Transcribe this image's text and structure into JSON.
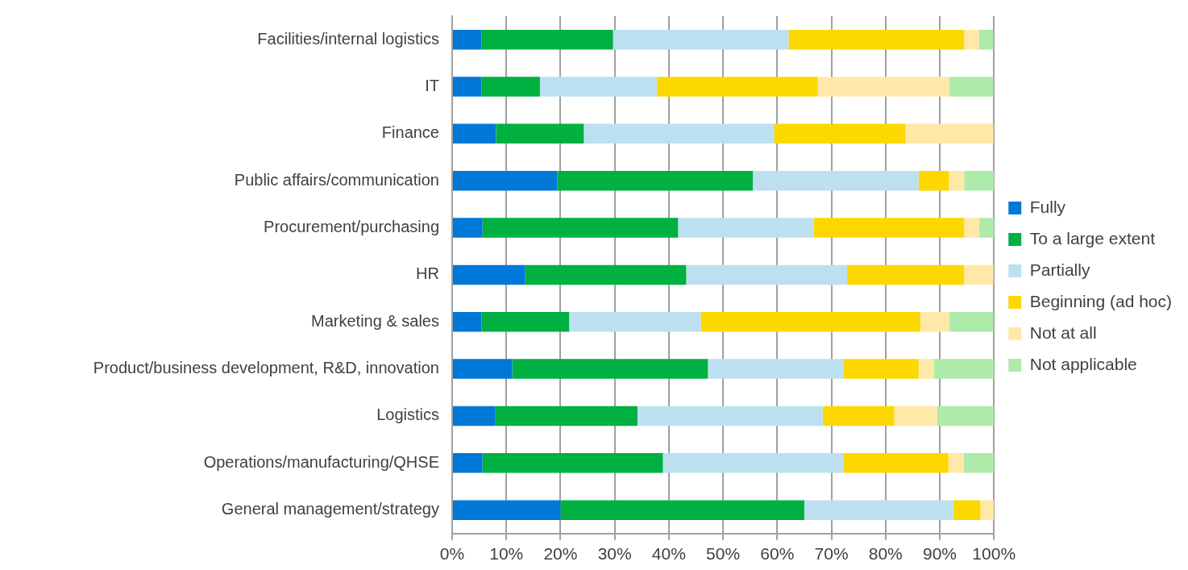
{
  "chart_data": {
    "type": "bar",
    "orientation": "horizontal",
    "stacked": true,
    "categories": [
      "Facilities/internal logistics",
      "IT",
      "Finance",
      "Public affairs/communication",
      "Procurement/purchasing",
      "HR",
      "Marketing & sales",
      "Product/business development, R&D, innovation",
      "Logistics",
      "Operations/manufacturing/QHSE",
      "General management/strategy"
    ],
    "series": [
      {
        "name": "Fully",
        "color": "#0078d7",
        "values": [
          5.4,
          5.4,
          8.1,
          19.4,
          5.6,
          13.5,
          5.4,
          11.1,
          7.9,
          5.6,
          20
        ]
      },
      {
        "name": "To a large extent",
        "color": "#00b040",
        "values": [
          24.3,
          10.8,
          16.2,
          36.1,
          36.1,
          29.7,
          16.2,
          36.1,
          26.3,
          33.3,
          45
        ]
      },
      {
        "name": "Partially",
        "color": "#bde0f0",
        "values": [
          32.4,
          21.6,
          35.1,
          30.6,
          25,
          29.7,
          24.3,
          25,
          34.2,
          33.3,
          27.5
        ]
      },
      {
        "name": "Beginning (ad hoc)",
        "color": "#fcd800",
        "values": [
          32.4,
          29.7,
          24.3,
          5.6,
          27.8,
          21.6,
          40.5,
          13.9,
          13.2,
          19.4,
          5
        ]
      },
      {
        "name": "Not at all",
        "color": "#ffe8a8",
        "values": [
          2.7,
          24.3,
          16.2,
          2.8,
          2.8,
          5.4,
          5.4,
          2.8,
          7.9,
          2.8,
          2.5
        ]
      },
      {
        "name": "Not applicable",
        "color": "#aeeaaa",
        "values": [
          2.7,
          8.1,
          0,
          5.6,
          2.8,
          0,
          8.1,
          11.1,
          10.5,
          5.6,
          0
        ]
      }
    ],
    "xlim": [
      0,
      100
    ],
    "xticks": [
      {
        "value": 0,
        "label": "0%"
      },
      {
        "value": 10,
        "label": "10%"
      },
      {
        "value": 20,
        "label": "20%"
      },
      {
        "value": 30,
        "label": "30%"
      },
      {
        "value": 40,
        "label": "40%"
      },
      {
        "value": 50,
        "label": "50%"
      },
      {
        "value": 60,
        "label": "60%"
      },
      {
        "value": 70,
        "label": "70%"
      },
      {
        "value": 80,
        "label": "80%"
      },
      {
        "value": 90,
        "label": "90%"
      },
      {
        "value": 100,
        "label": "100%"
      }
    ],
    "grid": "x",
    "legend": "right"
  }
}
